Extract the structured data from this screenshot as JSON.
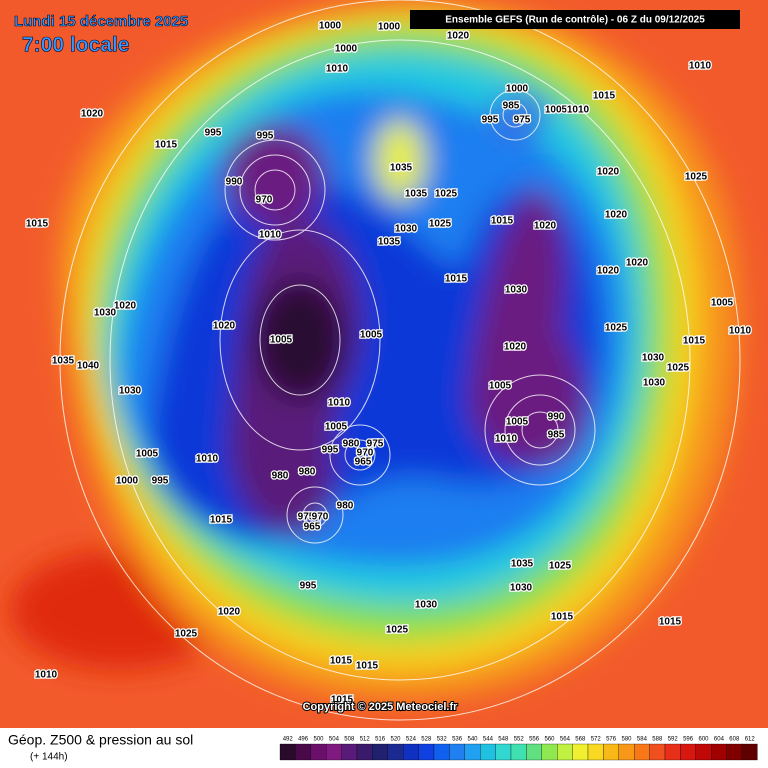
{
  "header": {
    "date": "Lundi 15 décembre 2025",
    "time": "7:00 locale",
    "run": "Ensemble GEFS  (Run de contrôle)  -  06 Z du 09/12/2025",
    "copyright": "Copyright © 2025 Meteociel.fr"
  },
  "footer": {
    "title": "Géop. Z500 & pression au sol",
    "subtitle": "(+ 144h)"
  },
  "colorbar": {
    "levels": [
      492,
      496,
      500,
      504,
      508,
      512,
      516,
      520,
      524,
      528,
      532,
      536,
      540,
      544,
      548,
      552,
      556,
      560,
      564,
      568,
      572,
      576,
      580,
      584,
      588,
      592,
      596,
      600,
      604,
      608,
      612
    ],
    "colors": [
      "#2a0a2a",
      "#4a0a4a",
      "#6a106a",
      "#801a80",
      "#5a1a7a",
      "#3a1a6a",
      "#202070",
      "#1a2a90",
      "#1030c0",
      "#1040e0",
      "#1060f0",
      "#2080f0",
      "#20a0f0",
      "#20c0e0",
      "#30d8d0",
      "#40e0b0",
      "#60e080",
      "#90e850",
      "#c0f040",
      "#f0f030",
      "#f8d820",
      "#f8b818",
      "#f89818",
      "#f87818",
      "#f05020",
      "#e83018",
      "#d81810",
      "#c00808",
      "#a00000",
      "#800000",
      "#600000"
    ]
  },
  "map": {
    "pressure_labels": [
      1000,
      1000,
      1010,
      1000,
      1020,
      1010,
      1000,
      985,
      995,
      975,
      1005,
      1010,
      1015,
      1020,
      995,
      995,
      1015,
      1035,
      1020,
      1025,
      990,
      970,
      1010,
      1015,
      1035,
      1025,
      1030,
      1035,
      1025,
      1015,
      1020,
      1020,
      1020,
      1020,
      1015,
      1030,
      1020,
      1030,
      1020,
      1005,
      1005,
      1025,
      1005,
      1010,
      1015,
      1035,
      1040,
      1030,
      1025,
      1020,
      1030,
      1030,
      1005,
      1010,
      1005,
      990,
      1005,
      985,
      1010,
      995,
      980,
      975,
      970,
      965,
      1005,
      1010,
      980,
      980,
      995,
      1000,
      980,
      975,
      970,
      965,
      1015,
      995,
      1020,
      1025,
      1030,
      1035,
      1025,
      1030,
      1025,
      1015,
      1015,
      1015,
      1015,
      1010,
      1015
    ]
  }
}
